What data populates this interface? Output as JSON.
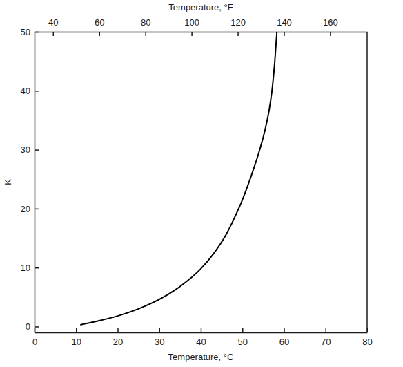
{
  "chart_data": {
    "type": "line",
    "xlabel": "Temperature, °C",
    "ylabel": "K",
    "x2label": "Temperature, °F",
    "x": [
      11,
      15,
      20,
      25,
      30,
      35,
      40,
      43,
      46,
      48,
      50,
      52,
      54,
      55.5,
      56.5,
      57.2,
      57.8,
      58.3
    ],
    "values": [
      0.3,
      0.9,
      1.8,
      3,
      4.6,
      6.8,
      9.8,
      12.3,
      15.5,
      18.3,
      21.5,
      25.3,
      29.6,
      33.5,
      37,
      40.5,
      45,
      50
    ],
    "color": "#000000",
    "xlim": [
      0,
      80
    ],
    "xticks": [
      0,
      10,
      20,
      30,
      40,
      50,
      60,
      70,
      80
    ],
    "x2lim": [
      32,
      176
    ],
    "x2ticks": [
      40,
      60,
      80,
      100,
      120,
      140,
      160
    ],
    "ylim": [
      -1,
      50
    ],
    "yticks": [
      0,
      10,
      20,
      30,
      40,
      50
    ],
    "grid": false
  }
}
